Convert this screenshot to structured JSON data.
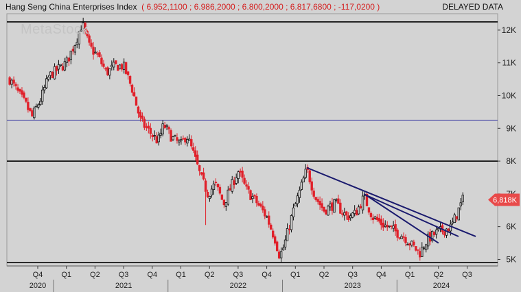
{
  "header": {
    "title": "Hang Seng China Enterprises Index",
    "ohlc": "( 6.952,1100 ;  6.986,2000 ;  6.800,2000 ;  6.817,6800 ;  -117,0200 )",
    "status": "DELAYED DATA"
  },
  "watermark": "MetaStock",
  "colors": {
    "background": "#d3d3d3",
    "candle_up": "#111111",
    "candle_down": "#e0202a",
    "trendline": "#1a1a6e",
    "hline_blue": "#5555aa",
    "hline_black": "#000000",
    "price_badge": "#e84a4a"
  },
  "chart_data": {
    "type": "candlestick",
    "title": "Hang Seng China Enterprises Index",
    "last_price_label": "6,818K",
    "last_price": 6818,
    "ylim": [
      4800,
      12500
    ],
    "y_ticks": [
      {
        "value": 5000,
        "label": "5K"
      },
      {
        "value": 6000,
        "label": "6K"
      },
      {
        "value": 7000,
        "label": "7K"
      },
      {
        "value": 8000,
        "label": "8K"
      },
      {
        "value": 9000,
        "label": "9K"
      },
      {
        "value": 10000,
        "label": "10K"
      },
      {
        "value": 11000,
        "label": "11K"
      },
      {
        "value": 12000,
        "label": "12K"
      }
    ],
    "x_ticks": [
      {
        "t": 0,
        "label": "Q4"
      },
      {
        "t": 1,
        "label": "Q1"
      },
      {
        "t": 2,
        "label": "Q2"
      },
      {
        "t": 3,
        "label": "Q3"
      },
      {
        "t": 4,
        "label": "Q4"
      },
      {
        "t": 5,
        "label": "Q1"
      },
      {
        "t": 6,
        "label": "Q2"
      },
      {
        "t": 7,
        "label": "Q3"
      },
      {
        "t": 8,
        "label": "Q4"
      },
      {
        "t": 9,
        "label": "Q1"
      },
      {
        "t": 10,
        "label": "Q2"
      },
      {
        "t": 11,
        "label": "Q3"
      },
      {
        "t": 12,
        "label": "Q4"
      },
      {
        "t": 13,
        "label": "Q1"
      },
      {
        "t": 14,
        "label": "Q2"
      },
      {
        "t": 15,
        "label": "Q3"
      }
    ],
    "year_labels": [
      {
        "t": 0,
        "label": "2020"
      },
      {
        "t": 3,
        "label": "2021"
      },
      {
        "t": 7,
        "label": "2022"
      },
      {
        "t": 11,
        "label": "2023"
      },
      {
        "t": 14.1,
        "label": "2024"
      }
    ],
    "year_separators": [
      0.55,
      4.55,
      8.55,
      12.55
    ],
    "horizontal_lines": [
      {
        "value": 12250,
        "color": "#000000",
        "width": 1.6
      },
      {
        "value": 9250,
        "color": "#5555aa",
        "width": 1
      },
      {
        "value": 8000,
        "color": "#000000",
        "width": 1.6
      },
      {
        "value": 4900,
        "color": "#000000",
        "width": 1.6
      }
    ],
    "trendlines": [
      {
        "t1": 9.4,
        "v1": 7800,
        "t2": 15.3,
        "v2": 5700
      },
      {
        "t1": 11.4,
        "v1": 7000,
        "t2": 14.0,
        "v2": 5500
      },
      {
        "t1": 11.5,
        "v1": 6950,
        "t2": 14.7,
        "v2": 5700
      }
    ],
    "price_path": [
      [
        -0.98,
        10500
      ],
      [
        -0.7,
        10100
      ],
      [
        -0.4,
        9700
      ],
      [
        -0.2,
        9350
      ],
      [
        0.1,
        9900
      ],
      [
        0.4,
        10600
      ],
      [
        0.7,
        10800
      ],
      [
        1.0,
        11000
      ],
      [
        1.3,
        11600
      ],
      [
        1.55,
        12200
      ],
      [
        1.8,
        11500
      ],
      [
        2.1,
        11200
      ],
      [
        2.4,
        10700
      ],
      [
        2.7,
        10900
      ],
      [
        3.0,
        10900
      ],
      [
        3.3,
        10200
      ],
      [
        3.6,
        9200
      ],
      [
        3.9,
        8900
      ],
      [
        4.2,
        8600
      ],
      [
        4.4,
        9100
      ],
      [
        4.7,
        8700
      ],
      [
        5.0,
        8500
      ],
      [
        5.2,
        8800
      ],
      [
        5.45,
        8200
      ],
      [
        5.7,
        7500
      ],
      [
        5.95,
        7000
      ],
      [
        6.2,
        7300
      ],
      [
        6.5,
        6700
      ],
      [
        6.8,
        7300
      ],
      [
        7.0,
        7700
      ],
      [
        7.3,
        7100
      ],
      [
        7.6,
        6800
      ],
      [
        8.0,
        6300
      ],
      [
        8.3,
        5600
      ],
      [
        8.45,
        5100
      ],
      [
        8.6,
        5400
      ],
      [
        8.9,
        6400
      ],
      [
        9.2,
        7200
      ],
      [
        9.4,
        7750
      ],
      [
        9.7,
        6900
      ],
      [
        10.0,
        6500
      ],
      [
        10.4,
        6700
      ],
      [
        10.8,
        6300
      ],
      [
        11.1,
        6400
      ],
      [
        11.4,
        6900
      ],
      [
        11.7,
        6300
      ],
      [
        12.0,
        6100
      ],
      [
        12.4,
        5900
      ],
      [
        12.8,
        5700
      ],
      [
        13.1,
        5400
      ],
      [
        13.35,
        5200
      ],
      [
        13.6,
        5600
      ],
      [
        13.9,
        5800
      ],
      [
        14.2,
        5900
      ],
      [
        14.45,
        6000
      ],
      [
        14.65,
        6400
      ],
      [
        14.85,
        6818
      ]
    ],
    "shock_wick": {
      "t": 5.85,
      "low": 6050
    }
  }
}
